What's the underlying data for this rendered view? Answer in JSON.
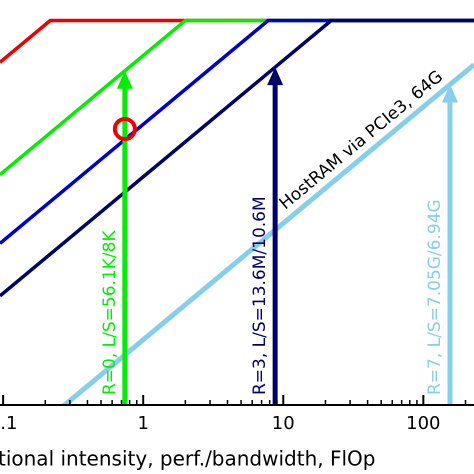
{
  "chart_data": {
    "type": "line",
    "x_label": "tional intensity, perf./bandwidth, FlOp",
    "xlim": [
      0.095,
      230
    ],
    "xticks": [
      0.1,
      1,
      10,
      100
    ],
    "xscale": "log",
    "ylim": [
      1,
      3000
    ],
    "yscale": "log",
    "series": [
      {
        "color": "#ee0000",
        "x": [
          0.095,
          0.217,
          230
        ],
        "values": [
          876,
          2000,
          2000
        ]
      },
      {
        "color": "#00ee00",
        "x": [
          0.095,
          2,
          230
        ],
        "values": [
          95,
          2000,
          2000
        ]
      },
      {
        "color": "#0000cc",
        "x": [
          0.095,
          7.8,
          230
        ],
        "values": [
          24.4,
          2000,
          2000
        ]
      },
      {
        "color": "#000066",
        "x": [
          0.095,
          22,
          230
        ],
        "values": [
          8.64,
          2000,
          2000
        ]
      },
      {
        "color": "#87ceeb",
        "x": [
          0.095,
          230
        ],
        "values": [
          0.345,
          836
        ]
      }
    ],
    "arrows": [
      {
        "x": 0.74,
        "y": 740,
        "color": "#00ee00",
        "label": "R=0, L/S=56.1K/8K"
      },
      {
        "x": 8.75,
        "y": 795,
        "color": "#000066",
        "label": "R=3, L/S=13.6M/10.6M"
      },
      {
        "x": 155,
        "y": 564,
        "color": "#87ceeb",
        "label": "R=7, L/S=7.05G/6.94G"
      }
    ],
    "points": [
      {
        "x": 0.74,
        "y": 234,
        "color": "#ee0000"
      }
    ],
    "line_label": {
      "text": "HostRAM via PCIe3, 64G",
      "series": 4
    }
  }
}
